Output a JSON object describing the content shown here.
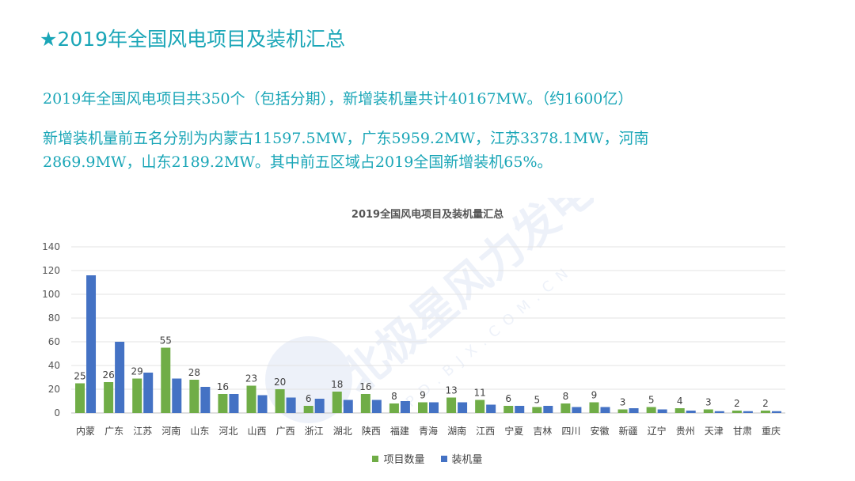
{
  "slide": {
    "title": "★2019年全国风电项目及装机汇总",
    "paragraph1": "2019年全国风电项目共350个（包括分期），新增装机量共计40167MW。（约1600亿）",
    "paragraph2": "新增装机量前五名分别为内蒙古11597.5MW，广东5959.2MW，江苏3378.1MW，河南2869.9MW，山东2189.2MW。其中前五区域占2019全国新增装机65%。"
  },
  "watermark": {
    "logo_text": "北极星风力发电网",
    "sub_text": "PD.BJX.COM.CN"
  },
  "colors": {
    "accent": "#1aa6b7",
    "projects": "#70ad47",
    "capacity": "#4472c4"
  },
  "chart_data": {
    "type": "bar",
    "title": "2019全国风电项目及装机量汇总",
    "categories": [
      "内蒙",
      "广东",
      "江苏",
      "河南",
      "山东",
      "河北",
      "山西",
      "广西",
      "浙江",
      "湖北",
      "陕西",
      "福建",
      "青海",
      "湖南",
      "江西",
      "宁夏",
      "吉林",
      "四川",
      "安徽",
      "新疆",
      "辽宁",
      "贵州",
      "天津",
      "甘肃",
      "重庆"
    ],
    "series": [
      {
        "name": "项目数量",
        "values": [
          25,
          26,
          29,
          55,
          28,
          16,
          23,
          20,
          6,
          18,
          16,
          8,
          9,
          13,
          11,
          6,
          5,
          8,
          9,
          3,
          5,
          4,
          3,
          2,
          2
        ],
        "data_labels": true
      },
      {
        "name": "装机量",
        "values": [
          116,
          60,
          34,
          29,
          22,
          16,
          15,
          13,
          12,
          11,
          11,
          10,
          9,
          9,
          7,
          6,
          6,
          5,
          5,
          4,
          3,
          2,
          1.5,
          1.5,
          1.5
        ],
        "data_labels": false
      }
    ],
    "ylim": [
      0,
      140
    ],
    "yticks": [
      0,
      20,
      40,
      60,
      80,
      100,
      120,
      140
    ],
    "grid": true,
    "legend": "bottom"
  }
}
